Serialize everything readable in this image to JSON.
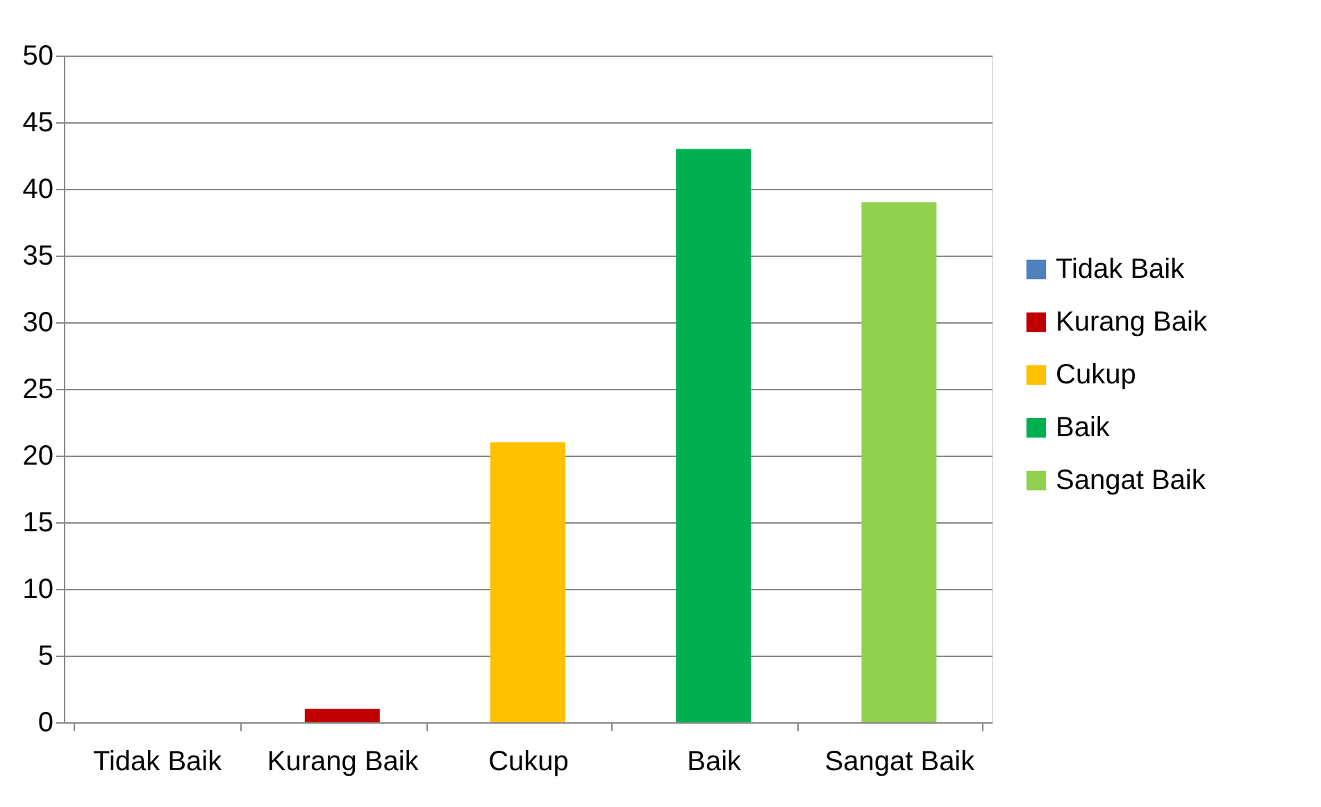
{
  "chart_data": {
    "type": "bar",
    "categories": [
      "Tidak Baik",
      "Kurang Baik",
      "Cukup",
      "Baik",
      "Sangat Baik"
    ],
    "series": [
      {
        "name": "Tidak Baik",
        "color": "#4f81bd",
        "values": [
          0,
          null,
          null,
          null,
          null
        ]
      },
      {
        "name": "Kurang Baik",
        "color": "#c00000",
        "values": [
          null,
          1,
          null,
          null,
          null
        ]
      },
      {
        "name": "Cukup",
        "color": "#ffc000",
        "values": [
          null,
          null,
          21,
          null,
          null
        ]
      },
      {
        "name": "Baik",
        "color": "#00b050",
        "values": [
          null,
          null,
          null,
          43,
          null
        ]
      },
      {
        "name": "Sangat Baik",
        "color": "#92d050",
        "values": [
          null,
          null,
          null,
          null,
          39
        ]
      }
    ],
    "ylim": [
      0,
      50
    ],
    "yticks": [
      0,
      5,
      10,
      15,
      20,
      25,
      30,
      35,
      40,
      45,
      50
    ],
    "grid": "y",
    "legend": "right"
  }
}
